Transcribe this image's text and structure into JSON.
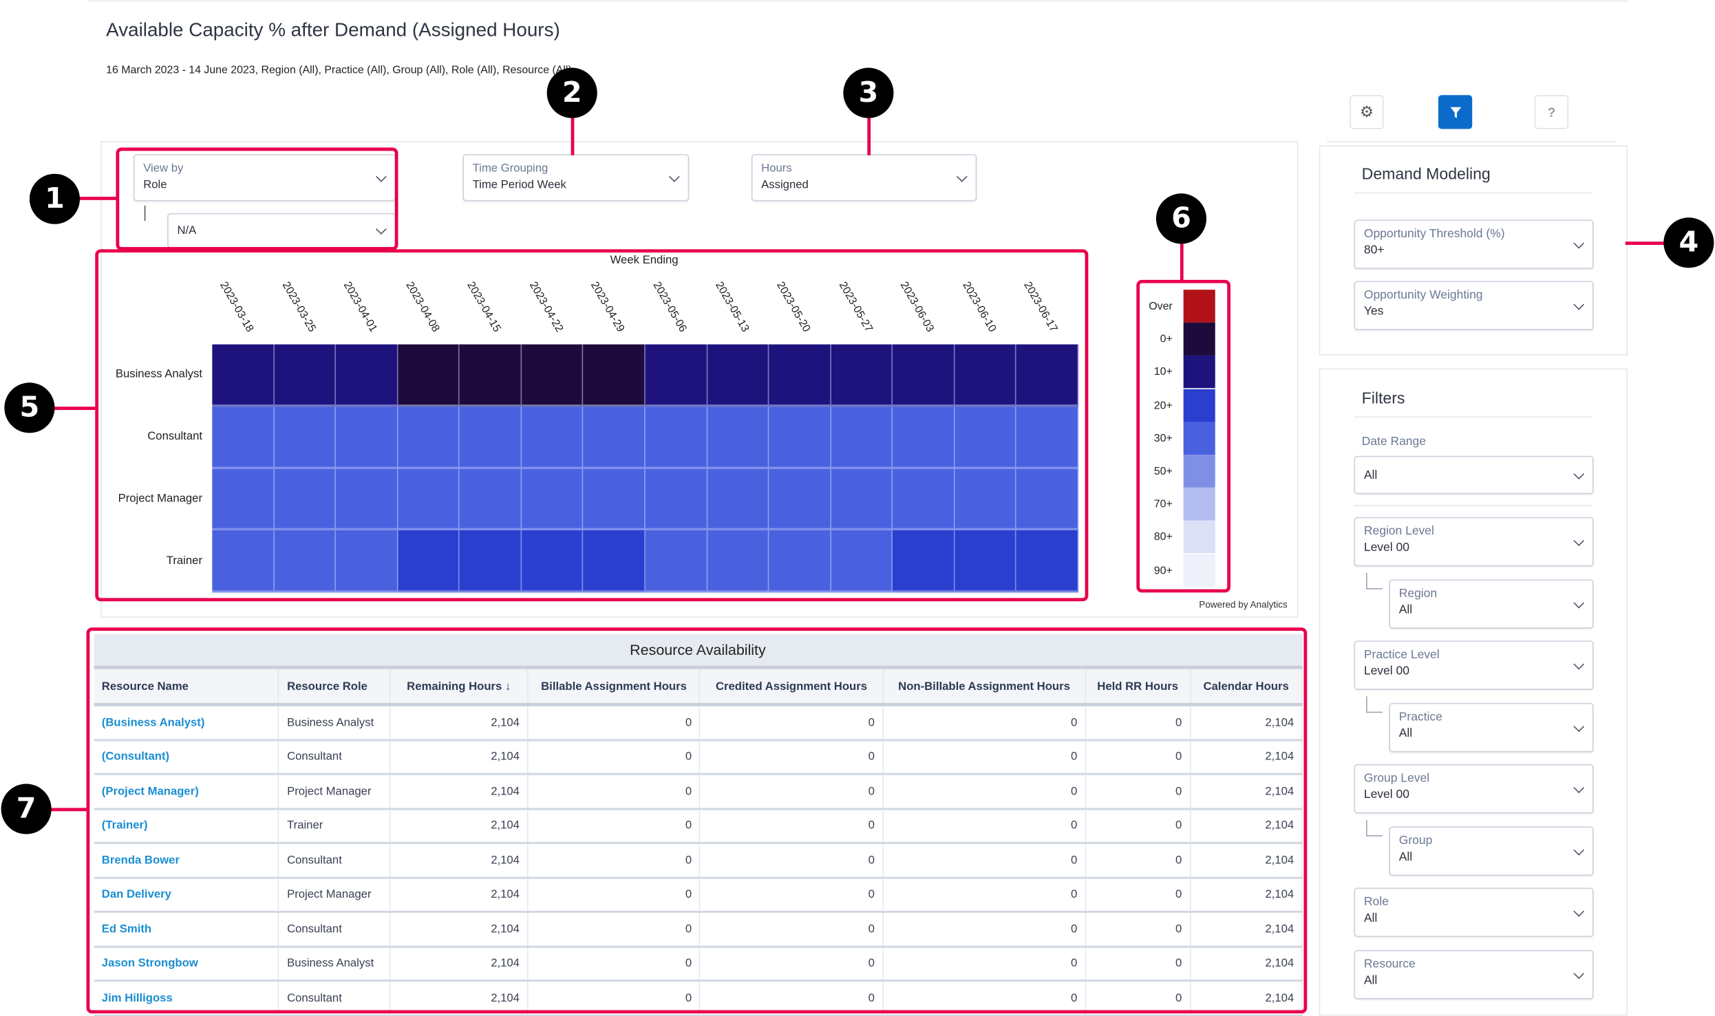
{
  "header": {
    "title": "Available Capacity % after Demand (Assigned Hours)",
    "subtitle": "16 March 2023 - 14 June 2023, Region (All), Practice (All), Group (All), Role (All), Resource (All)"
  },
  "controls": {
    "view_by": {
      "label": "View by",
      "value": "Role"
    },
    "view_by_sub": {
      "value": "N/A"
    },
    "time_grouping": {
      "label": "Time Grouping",
      "value": "Time Period Week"
    },
    "hours": {
      "label": "Hours",
      "value": "Assigned"
    }
  },
  "chart_data": {
    "type": "heatmap",
    "title": "Week Ending",
    "x": [
      "2023-03-18",
      "2023-03-25",
      "2023-04-01",
      "2023-04-08",
      "2023-04-15",
      "2023-04-22",
      "2023-04-29",
      "2023-05-06",
      "2023-05-13",
      "2023-05-20",
      "2023-05-27",
      "2023-06-03",
      "2023-06-10",
      "2023-06-17"
    ],
    "y": [
      "Business Analyst",
      "Consultant",
      "Project Manager",
      "Trainer"
    ],
    "values": [
      [
        "10+",
        "10+",
        "10+",
        "0+",
        "0+",
        "0+",
        "0+",
        "10+",
        "10+",
        "10+",
        "10+",
        "10+",
        "10+",
        "10+"
      ],
      [
        "30+",
        "30+",
        "30+",
        "30+",
        "30+",
        "30+",
        "30+",
        "30+",
        "30+",
        "30+",
        "30+",
        "30+",
        "30+",
        "30+"
      ],
      [
        "30+",
        "30+",
        "30+",
        "30+",
        "30+",
        "30+",
        "30+",
        "30+",
        "30+",
        "30+",
        "30+",
        "30+",
        "30+",
        "30+"
      ],
      [
        "30+",
        "30+",
        "30+",
        "20+",
        "20+",
        "20+",
        "20+",
        "30+",
        "30+",
        "30+",
        "30+",
        "20+",
        "20+",
        "20+"
      ]
    ],
    "legend": [
      {
        "label": "Over",
        "color": "#b01217"
      },
      {
        "label": "0+",
        "color": "#1f0a3c"
      },
      {
        "label": "10+",
        "color": "#1e137d"
      },
      {
        "label": "20+",
        "color": "#2b3fcf"
      },
      {
        "label": "30+",
        "color": "#4a61df"
      },
      {
        "label": "50+",
        "color": "#7f8fe6"
      },
      {
        "label": "70+",
        "color": "#b3bdf0"
      },
      {
        "label": "80+",
        "color": "#dbe0f7"
      },
      {
        "label": "90+",
        "color": "#eef0fa"
      }
    ],
    "legend_position": "right"
  },
  "powered_by": "Powered by Analytics",
  "toolbar": {
    "gear": "gear-icon",
    "filter": "filter-icon",
    "help": "?",
    "accent": "#0b6bcb"
  },
  "demand_modeling": {
    "title": "Demand Modeling",
    "threshold": {
      "label": "Opportunity Threshold (%)",
      "value": "80+"
    },
    "weighting": {
      "label": "Opportunity Weighting",
      "value": "Yes"
    }
  },
  "filters": {
    "title": "Filters",
    "date_range_label": "Date Range",
    "date_range_value": "All",
    "items": [
      {
        "label": "Region Level",
        "value": "Level 00"
      },
      {
        "label": "Region",
        "value": "All"
      },
      {
        "label": "Practice Level",
        "value": "Level 00"
      },
      {
        "label": "Practice",
        "value": "All"
      },
      {
        "label": "Group Level",
        "value": "Level 00"
      },
      {
        "label": "Group",
        "value": "All"
      },
      {
        "label": "Role",
        "value": "All"
      },
      {
        "label": "Resource",
        "value": "All"
      }
    ]
  },
  "table": {
    "title": "Resource Availability",
    "columns": [
      "Resource Name",
      "Resource Role",
      "Remaining Hours ↓",
      "Billable Assignment Hours",
      "Credited Assignment Hours",
      "Non-Billable Assignment Hours",
      "Held RR Hours",
      "Calendar Hours"
    ],
    "rows": [
      [
        "(Business Analyst)",
        "Business Analyst",
        "2,104",
        "0",
        "0",
        "0",
        "0",
        "2,104"
      ],
      [
        "(Consultant)",
        "Consultant",
        "2,104",
        "0",
        "0",
        "0",
        "0",
        "2,104"
      ],
      [
        "(Project Manager)",
        "Project Manager",
        "2,104",
        "0",
        "0",
        "0",
        "0",
        "2,104"
      ],
      [
        "(Trainer)",
        "Trainer",
        "2,104",
        "0",
        "0",
        "0",
        "0",
        "2,104"
      ],
      [
        "Brenda Bower",
        "Consultant",
        "2,104",
        "0",
        "0",
        "0",
        "0",
        "2,104"
      ],
      [
        "Dan Delivery",
        "Project Manager",
        "2,104",
        "0",
        "0",
        "0",
        "0",
        "2,104"
      ],
      [
        "Ed Smith",
        "Consultant",
        "2,104",
        "0",
        "0",
        "0",
        "0",
        "2,104"
      ],
      [
        "Jason Strongbow",
        "Business Analyst",
        "2,104",
        "0",
        "0",
        "0",
        "0",
        "2,104"
      ],
      [
        "Jim Hilligoss",
        "Consultant",
        "2,104",
        "0",
        "0",
        "0",
        "0",
        "2,104"
      ]
    ]
  },
  "callouts": [
    "1",
    "2",
    "3",
    "4",
    "5",
    "6",
    "7"
  ]
}
